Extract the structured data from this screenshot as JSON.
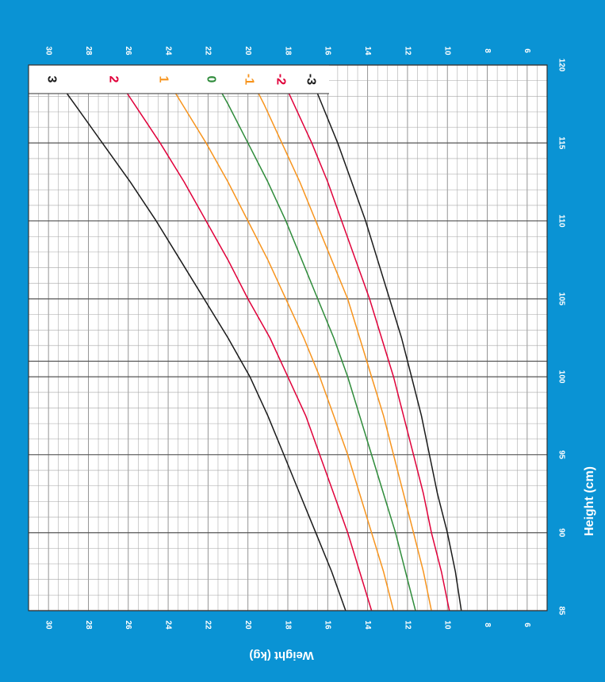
{
  "chart_data": {
    "type": "line",
    "xlabel": "Height (cm)",
    "ylabel": "Weight (kg)",
    "xlim": [
      85,
      120
    ],
    "ylim": [
      5,
      31
    ],
    "x_ticks": [
      "85",
      "90",
      "95",
      "100",
      "105",
      "110",
      "115",
      "120"
    ],
    "y_ticks": [
      "6",
      "8",
      "10",
      "12",
      "14",
      "16",
      "18",
      "20",
      "22",
      "24",
      "26",
      "28",
      "30"
    ],
    "x": [
      85,
      87.5,
      90,
      92.5,
      95,
      97.5,
      100,
      102.5,
      105,
      107.5,
      110,
      112.5,
      115,
      117.5,
      120
    ],
    "series": [
      {
        "name": "3",
        "color": "#1a1a1a",
        "values": [
          15.1,
          15.8,
          16.6,
          17.4,
          18.2,
          19.0,
          19.9,
          21.0,
          22.2,
          23.4,
          24.6,
          25.9,
          27.3,
          28.7,
          30.1
        ]
      },
      {
        "name": "2",
        "color": "#e0003a",
        "values": [
          13.8,
          14.4,
          15.0,
          15.7,
          16.4,
          17.1,
          18.0,
          18.9,
          20.0,
          21.0,
          22.1,
          23.2,
          24.4,
          25.7,
          27.0
        ]
      },
      {
        "name": "1",
        "color": "#f7941d",
        "values": [
          12.7,
          13.2,
          13.8,
          14.4,
          15.0,
          15.7,
          16.4,
          17.2,
          18.1,
          19.0,
          20.0,
          21.0,
          22.1,
          23.3,
          24.5
        ]
      },
      {
        "name": "0",
        "color": "#2e8b3a",
        "values": [
          11.6,
          12.1,
          12.6,
          13.2,
          13.8,
          14.4,
          15.0,
          15.7,
          16.5,
          17.3,
          18.1,
          19.0,
          20.0,
          21.0,
          22.1
        ]
      },
      {
        "name": "-1",
        "color": "#f7941d",
        "values": [
          10.8,
          11.2,
          11.7,
          12.2,
          12.7,
          13.2,
          13.8,
          14.4,
          15.0,
          15.8,
          16.6,
          17.4,
          18.3,
          19.2,
          20.2
        ]
      },
      {
        "name": "-2",
        "color": "#e0003a",
        "values": [
          9.9,
          10.3,
          10.8,
          11.2,
          11.7,
          12.2,
          12.7,
          13.3,
          13.9,
          14.6,
          15.3,
          16.0,
          16.8,
          17.7,
          18.6
        ]
      },
      {
        "name": "-3",
        "color": "#1a1a1a",
        "values": [
          9.3,
          9.6,
          10.0,
          10.5,
          10.9,
          11.3,
          11.8,
          12.3,
          12.9,
          13.5,
          14.1,
          14.8,
          15.5,
          16.3,
          17.1
        ]
      }
    ],
    "grid": true,
    "orientation": "rotated 90 degrees clockwise",
    "colors": {
      "frame": "#0a93d4",
      "plot_bg": "#ffffff",
      "grid_minor": "#a6a6a6",
      "grid_major": "#555555",
      "text_on_frame": "#ffffff"
    }
  }
}
